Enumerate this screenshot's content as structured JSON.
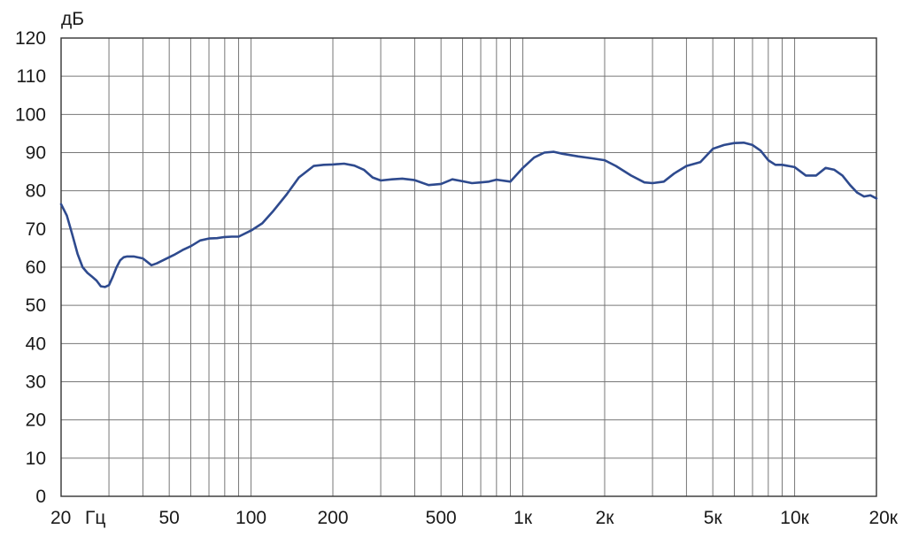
{
  "chart_data": {
    "type": "line",
    "title": "",
    "xlabel": "",
    "ylabel": "дБ",
    "x_scale": "log",
    "xlim": [
      20,
      20000
    ],
    "ylim": [
      0,
      120
    ],
    "grid": true,
    "colors": {
      "line": "#2e4a8e",
      "grid": "#777777",
      "axis": "#333333"
    },
    "y_ticks": [
      {
        "value": 0,
        "label": "0"
      },
      {
        "value": 10,
        "label": "10"
      },
      {
        "value": 20,
        "label": "20"
      },
      {
        "value": 30,
        "label": "30"
      },
      {
        "value": 40,
        "label": "40"
      },
      {
        "value": 50,
        "label": "50"
      },
      {
        "value": 60,
        "label": "60"
      },
      {
        "value": 70,
        "label": "70"
      },
      {
        "value": 80,
        "label": "80"
      },
      {
        "value": 90,
        "label": "90"
      },
      {
        "value": 100,
        "label": "100"
      },
      {
        "value": 110,
        "label": "110"
      },
      {
        "value": 120,
        "label": "120"
      }
    ],
    "x_ticks": [
      {
        "value": 20,
        "label": "20"
      },
      {
        "value": 50,
        "label": "50"
      },
      {
        "value": 100,
        "label": "100"
      },
      {
        "value": 200,
        "label": "200"
      },
      {
        "value": 500,
        "label": "500"
      },
      {
        "value": 1000,
        "label": "1к"
      },
      {
        "value": 2000,
        "label": "2к"
      },
      {
        "value": 5000,
        "label": "5к"
      },
      {
        "value": 10000,
        "label": "10к"
      },
      {
        "value": 20000,
        "label": "20к"
      }
    ],
    "x_unit_label": "Гц",
    "x_gridlines": [
      30,
      40,
      50,
      60,
      70,
      80,
      90,
      100,
      200,
      300,
      400,
      500,
      600,
      700,
      800,
      900,
      1000,
      2000,
      3000,
      4000,
      5000,
      6000,
      7000,
      8000,
      9000,
      10000
    ],
    "series": [
      {
        "x": [
          20,
          21,
          22,
          23,
          24,
          25,
          26,
          27,
          28,
          29,
          30,
          31,
          32,
          33,
          34,
          35,
          37,
          40,
          43,
          45,
          48,
          52,
          56,
          60,
          65,
          70,
          75,
          80,
          85,
          90,
          100,
          110,
          120,
          135,
          150,
          170,
          185,
          200,
          220,
          240,
          260,
          280,
          300,
          330,
          360,
          400,
          450,
          500,
          550,
          600,
          650,
          700,
          750,
          800,
          900,
          1000,
          1100,
          1200,
          1300,
          1400,
          1600,
          1800,
          2000,
          2200,
          2500,
          2800,
          3000,
          3300,
          3600,
          4000,
          4500,
          5000,
          5500,
          6000,
          6500,
          7000,
          7500,
          8000,
          8500,
          9000,
          10000,
          11000,
          12000,
          13000,
          14000,
          15000,
          16000,
          17000,
          18000,
          19000,
          20000
        ],
        "y": [
          76.5,
          73.5,
          68.5,
          63.5,
          60,
          58.5,
          57.5,
          56.5,
          55,
          54.8,
          55.3,
          57.5,
          60,
          61.8,
          62.6,
          62.8,
          62.8,
          62.3,
          60.5,
          61,
          62,
          63.2,
          64.5,
          65.5,
          67,
          67.5,
          67.6,
          67.9,
          68,
          68,
          69.6,
          71.5,
          74.5,
          79,
          83.5,
          86.5,
          86.8,
          86.9,
          87.1,
          86.6,
          85.5,
          83.5,
          82.7,
          83,
          83.2,
          82.8,
          81.5,
          81.8,
          83,
          82.5,
          82,
          82.2,
          82.4,
          82.9,
          82.4,
          86,
          88.7,
          90,
          90.2,
          89.7,
          89,
          88.5,
          88,
          86.5,
          84,
          82.2,
          82,
          82.4,
          84.5,
          86.5,
          87.5,
          91,
          92,
          92.5,
          92.6,
          92,
          90.5,
          88,
          86.8,
          86.8,
          86.2,
          84,
          84,
          86,
          85.5,
          84,
          81.5,
          79.5,
          78.5,
          78.8,
          78
        ]
      }
    ]
  }
}
